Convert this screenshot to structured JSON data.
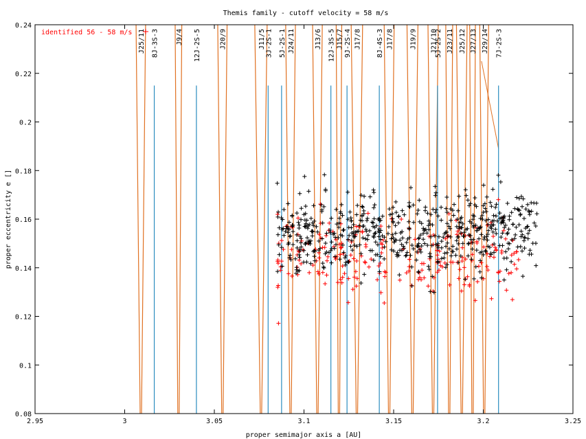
{
  "chart_data": {
    "type": "scatter",
    "title": "Themis family - cutoff velocity = 58 m/s",
    "xlabel": "proper semimajor axis a [AU]",
    "ylabel": "proper eccentricity e []",
    "xlim": [
      2.95,
      3.25
    ],
    "ylim": [
      0.08,
      0.24
    ],
    "x_ticks": [
      "2.95",
      "3",
      "3.05",
      "3.1",
      "3.15",
      "3.2",
      "3.25"
    ],
    "y_ticks": [
      "0.08",
      "0.1",
      "0.12",
      "0.14",
      "0.16",
      "0.18",
      "0.2",
      "0.22",
      "0.24"
    ],
    "grid": false,
    "legend_position": "top-left",
    "series": [
      {
        "name": "identified 56 - 58 m/s",
        "color": "#ff0000",
        "marker": "+",
        "e_center": 0.145,
        "e_spread": 0.008,
        "a_range": [
          3.085,
          3.22
        ]
      },
      {
        "name": "",
        "color": "#000000",
        "marker": "+",
        "e_center": 0.153,
        "e_spread": 0.008,
        "a_range": [
          3.085,
          3.23
        ]
      }
    ],
    "resonances": [
      {
        "label": "J25/11",
        "a": 3.009,
        "kind": "jupiter"
      },
      {
        "label": "8J-3S-3",
        "a": 3.0165,
        "kind": "three-body"
      },
      {
        "label": "J9/4",
        "a": 3.03,
        "kind": "jupiter"
      },
      {
        "label": "12J-2S-5",
        "a": 3.04,
        "kind": "three-body"
      },
      {
        "label": "J20/9",
        "a": 3.0545,
        "kind": "jupiter"
      },
      {
        "label": "J11/5",
        "a": 3.076,
        "kind": "jupiter"
      },
      {
        "label": "3J-2S-1",
        "a": 3.08,
        "kind": "three-body"
      },
      {
        "label": "5J-2S-1",
        "a": 3.0875,
        "kind": "three-body"
      },
      {
        "label": "J24/11",
        "a": 3.0925,
        "kind": "jupiter"
      },
      {
        "label": "J13/6",
        "a": 3.1075,
        "kind": "jupiter"
      },
      {
        "label": "12J-3S-5",
        "a": 3.115,
        "kind": "three-body"
      },
      {
        "label": "J15/7",
        "a": 3.1195,
        "kind": "jupiter"
      },
      {
        "label": "9J-2S-4",
        "a": 3.124,
        "kind": "three-body"
      },
      {
        "label": "J17/8",
        "a": 3.1295,
        "kind": "jupiter"
      },
      {
        "label": "8J-4S-3",
        "a": 3.142,
        "kind": "three-body"
      },
      {
        "label": "J17/8",
        "a": 3.1475,
        "kind": "jupiter"
      },
      {
        "label": "J19/9",
        "a": 3.1605,
        "kind": "jupiter"
      },
      {
        "label": "J21/10",
        "a": 3.172,
        "kind": "jupiter"
      },
      {
        "label": "5J-2S-2",
        "a": 3.1745,
        "kind": "three-body"
      },
      {
        "label": "J23/11",
        "a": 3.181,
        "kind": "jupiter"
      },
      {
        "label": "J25/12",
        "a": 3.188,
        "kind": "jupiter"
      },
      {
        "label": "J27/13",
        "a": 3.194,
        "kind": "jupiter"
      },
      {
        "label": "J29/14",
        "a": 3.2005,
        "kind": "jupiter"
      },
      {
        "label": "7J-2S-3",
        "a": 3.2085,
        "kind": "three-body"
      }
    ],
    "resonance_line_top_e": 0.215,
    "diagonal_line": {
      "from": [
        3.199,
        0.225
      ],
      "to": [
        3.2085,
        0.189
      ],
      "color": "#e07020"
    }
  },
  "colors": {
    "jupiter": "#e07020",
    "three_body": "#2a8cbf",
    "identified": "#ff0000",
    "others": "#000000",
    "axis": "#000000"
  }
}
